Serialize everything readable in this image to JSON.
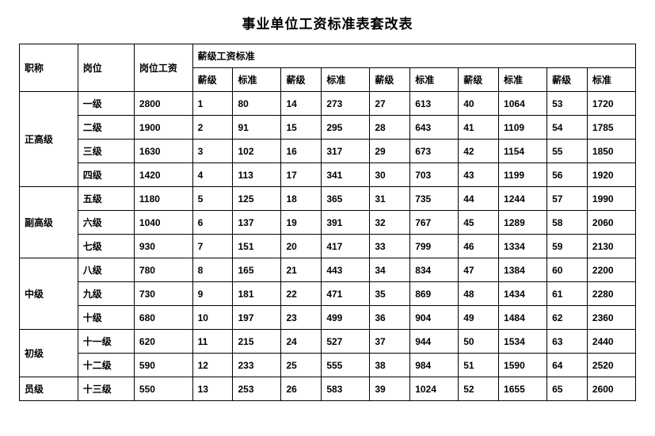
{
  "title": "事业单位工资标准表套改表",
  "headers": {
    "category": "职称",
    "level": "岗位",
    "base": "岗位工资",
    "group": "薪级工资标准",
    "xj": "薪级",
    "bz": "标准"
  },
  "categories": [
    {
      "name": "正高级",
      "rowspan": 4
    },
    {
      "name": "副高级",
      "rowspan": 3
    },
    {
      "name": "中级",
      "rowspan": 3
    },
    {
      "name": "初级",
      "rowspan": 2
    },
    {
      "name": "员级",
      "rowspan": 1
    }
  ],
  "rows": [
    {
      "level": "一级",
      "base": "2800",
      "cells": [
        "1",
        "80",
        "14",
        "273",
        "27",
        "613",
        "40",
        "1064",
        "53",
        "1720"
      ]
    },
    {
      "level": "二级",
      "base": "1900",
      "cells": [
        "2",
        "91",
        "15",
        "295",
        "28",
        "643",
        "41",
        "1109",
        "54",
        "1785"
      ]
    },
    {
      "level": "三级",
      "base": "1630",
      "cells": [
        "3",
        "102",
        "16",
        "317",
        "29",
        "673",
        "42",
        "1154",
        "55",
        "1850"
      ]
    },
    {
      "level": "四级",
      "base": "1420",
      "cells": [
        "4",
        "113",
        "17",
        "341",
        "30",
        "703",
        "43",
        "1199",
        "56",
        "1920"
      ]
    },
    {
      "level": "五级",
      "base": "1180",
      "cells": [
        "5",
        "125",
        "18",
        "365",
        "31",
        "735",
        "44",
        "1244",
        "57",
        "1990"
      ]
    },
    {
      "level": "六级",
      "base": "1040",
      "cells": [
        "6",
        "137",
        "19",
        "391",
        "32",
        "767",
        "45",
        "1289",
        "58",
        "2060"
      ]
    },
    {
      "level": "七级",
      "base": "930",
      "cells": [
        "7",
        "151",
        "20",
        "417",
        "33",
        "799",
        "46",
        "1334",
        "59",
        "2130"
      ]
    },
    {
      "level": "八级",
      "base": "780",
      "cells": [
        "8",
        "165",
        "21",
        "443",
        "34",
        "834",
        "47",
        "1384",
        "60",
        "2200"
      ]
    },
    {
      "level": "九级",
      "base": "730",
      "cells": [
        "9",
        "181",
        "22",
        "471",
        "35",
        "869",
        "48",
        "1434",
        "61",
        "2280"
      ]
    },
    {
      "level": "十级",
      "base": "680",
      "cells": [
        "10",
        "197",
        "23",
        "499",
        "36",
        "904",
        "49",
        "1484",
        "62",
        "2360"
      ]
    },
    {
      "level": "十一级",
      "base": "620",
      "cells": [
        "11",
        "215",
        "24",
        "527",
        "37",
        "944",
        "50",
        "1534",
        "63",
        "2440"
      ]
    },
    {
      "level": "十二级",
      "base": "590",
      "cells": [
        "12",
        "233",
        "25",
        "555",
        "38",
        "984",
        "51",
        "1590",
        "64",
        "2520"
      ]
    },
    {
      "level": "十三级",
      "base": "550",
      "cells": [
        "13",
        "253",
        "26",
        "583",
        "39",
        "1024",
        "52",
        "1655",
        "65",
        "2600"
      ]
    }
  ],
  "style": {
    "border_color": "#000000",
    "background_color": "#ffffff",
    "text_color": "#000000",
    "font_size_title": 17,
    "font_size_cell": 12,
    "font_weight_cell": "bold"
  }
}
